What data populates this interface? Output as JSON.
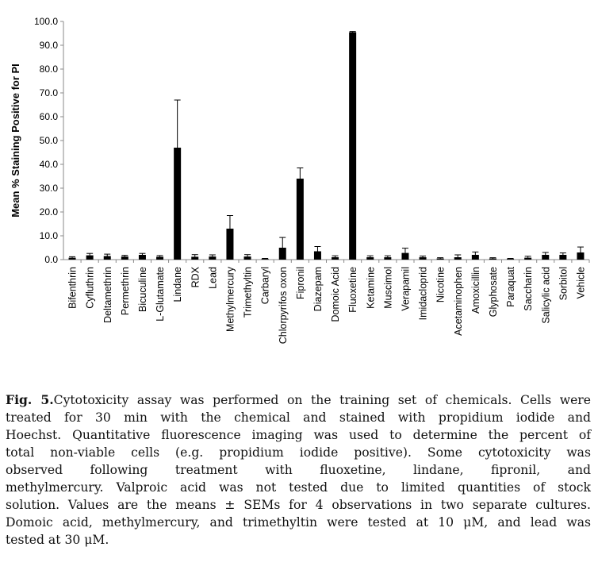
{
  "chart_data": {
    "type": "bar",
    "title": "",
    "xlabel": "",
    "ylabel": "Mean % Staining Positive for PI",
    "ylim": [
      0,
      100
    ],
    "yticks": [
      "0.0",
      "10.0",
      "20.0",
      "30.0",
      "40.0",
      "50.0",
      "60.0",
      "70.0",
      "80.0",
      "90.0",
      "100.0"
    ],
    "grid": false,
    "categories": [
      "Bifenthrin",
      "Cyfluthrin",
      "Deltamethrin",
      "Permethrin",
      "Bicuculine",
      "L-Glutamate",
      "Lindane",
      "RDX",
      "Lead",
      "Methylmercury",
      "Trimethyltin",
      "Carbaryl",
      "Chlorpyrifos oxon",
      "Fipronil",
      "Diazepam",
      "Domoic Acid",
      "Fluoxetine",
      "Ketamine",
      "Muscimol",
      "Verapamil",
      "Imidacloprid",
      "Nicotine",
      "Acetaminophen",
      "Amoxicillin",
      "Glyphosate",
      "Paraquat",
      "Saccharin",
      "Salicylic acid",
      "Sorbitol",
      "Vehicle"
    ],
    "values": [
      0.8,
      1.8,
      1.5,
      1.3,
      2.0,
      1.2,
      47.0,
      1.2,
      1.3,
      13.0,
      1.3,
      0.3,
      5.0,
      34.0,
      3.5,
      1.0,
      95.5,
      1.0,
      1.0,
      2.8,
      1.0,
      0.5,
      1.0,
      2.0,
      0.5,
      0.3,
      0.8,
      2.0,
      2.0,
      3.0
    ],
    "errors": [
      0.4,
      0.8,
      0.8,
      0.5,
      0.6,
      0.5,
      20.0,
      0.9,
      0.7,
      5.5,
      0.8,
      0.2,
      4.3,
      4.5,
      2.0,
      0.6,
      0.3,
      0.6,
      0.6,
      2.0,
      0.5,
      0.3,
      1.0,
      1.2,
      0.3,
      0.2,
      0.6,
      1.0,
      0.8,
      2.3
    ],
    "bar_color": "#000000"
  },
  "caption": {
    "fig_label": "Fig. 5.",
    "lines": [
      "Cytotoxicity assay was performed on the training set of chemicals. Cells were",
      "treated for 30 min with the chemical and stained with propidium iodide and",
      "Hoechst. Quantitative fluorescence imaging was used to determine the percent of",
      "total non-viable cells (e.g. propidium iodide positive). Some cytotoxicity was",
      "observed following treatment with fluoxetine, lindane, fipronil, and",
      "methylmercury. Valproic acid was not tested due to limited quantities of stock",
      "solution. Values are the means ± SEMs for 4 observations in two separate cultures.",
      "Domoic acid, methylmercury, and trimethyltin were tested at 10 μM, and lead was",
      "tested at 30 μM."
    ]
  }
}
